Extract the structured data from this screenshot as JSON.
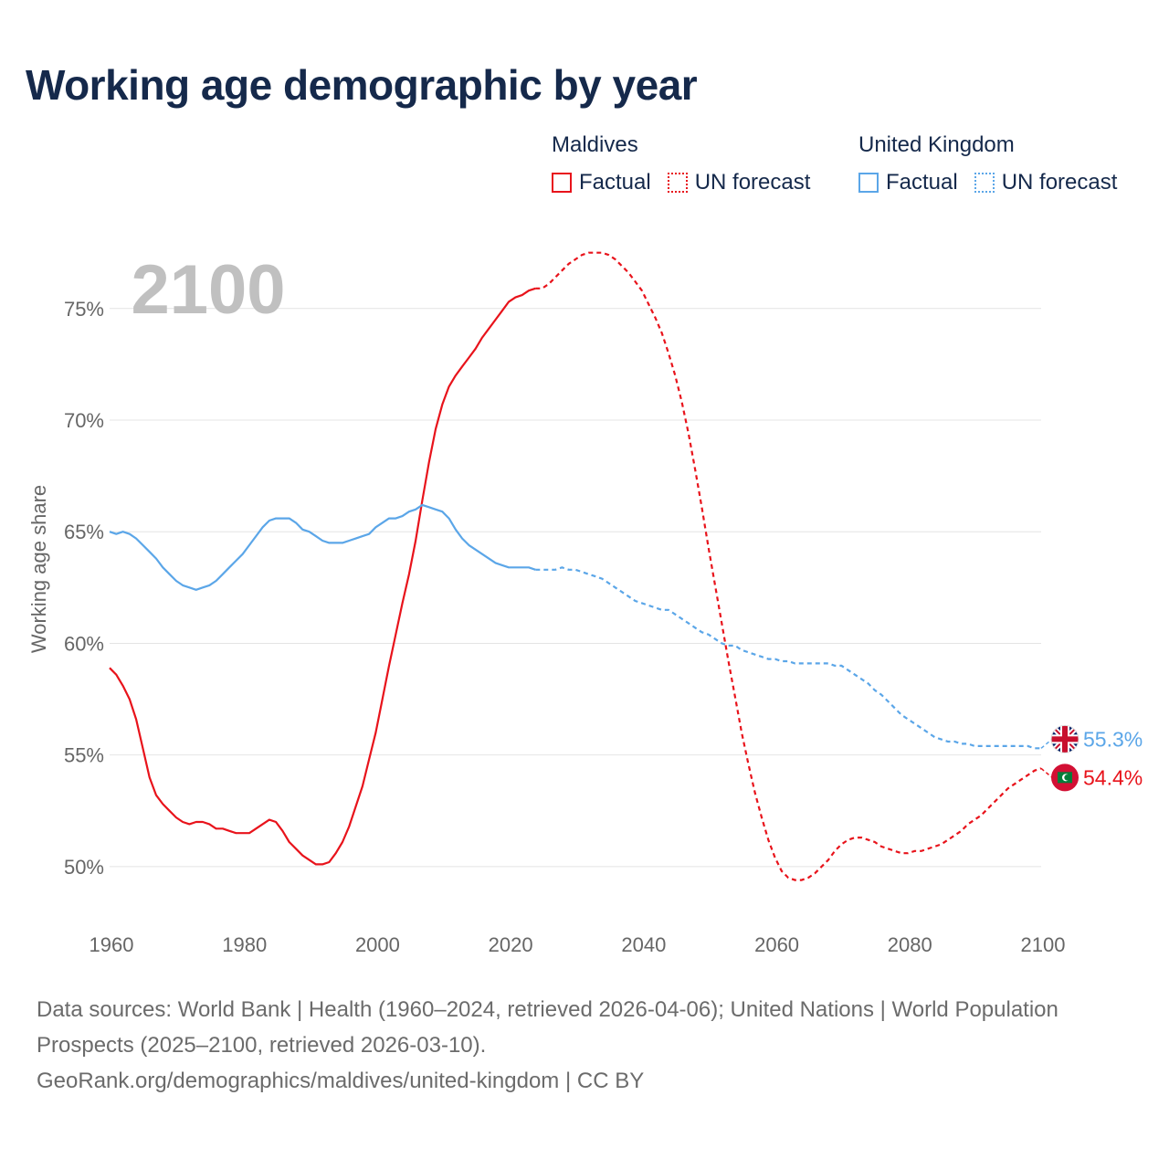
{
  "title": "Working age demographic by year",
  "legend": [
    {
      "country": "Maldives",
      "factual_label": "Factual",
      "forecast_label": "UN forecast",
      "color": "#e8131b"
    },
    {
      "country": "United Kingdom",
      "factual_label": "Factual",
      "forecast_label": "UN forecast",
      "color": "#5ba6e8"
    }
  ],
  "footer": {
    "sources": "Data sources: World Bank | Health (1960–2024, retrieved 2026-04-06); United Nations | World Population Prospects (2025–2100, retrieved 2026-03-10).",
    "link": "GeoRank.org/demographics/maldives/united-kingdom | CC BY"
  },
  "chart_data": {
    "type": "line",
    "title": "Working age demographic by year",
    "year_watermark": "2100",
    "xlabel": "",
    "ylabel": "Working age share",
    "xlim": [
      1960,
      2100
    ],
    "ylim": [
      47.5,
      79
    ],
    "x_ticks": [
      1960,
      1980,
      2000,
      2020,
      2040,
      2060,
      2080,
      2100
    ],
    "y_ticks": [
      50,
      55,
      60,
      65,
      70,
      75
    ],
    "y_tick_labels": [
      "50%",
      "55%",
      "60%",
      "65%",
      "70%",
      "75%"
    ],
    "grid": "horizontal",
    "factual_end_year": 2024,
    "series": [
      {
        "name": "Maldives",
        "color": "#e8131b",
        "end_label": "54.4%",
        "flag": "maldives-flag",
        "points": [
          [
            1960,
            58.9
          ],
          [
            1961,
            58.6
          ],
          [
            1962,
            58.1
          ],
          [
            1963,
            57.5
          ],
          [
            1964,
            56.6
          ],
          [
            1965,
            55.3
          ],
          [
            1966,
            54.0
          ],
          [
            1967,
            53.2
          ],
          [
            1968,
            52.8
          ],
          [
            1969,
            52.5
          ],
          [
            1970,
            52.2
          ],
          [
            1971,
            52.0
          ],
          [
            1972,
            51.9
          ],
          [
            1973,
            52.0
          ],
          [
            1974,
            52.0
          ],
          [
            1975,
            51.9
          ],
          [
            1976,
            51.7
          ],
          [
            1977,
            51.7
          ],
          [
            1978,
            51.6
          ],
          [
            1979,
            51.5
          ],
          [
            1980,
            51.5
          ],
          [
            1981,
            51.5
          ],
          [
            1982,
            51.7
          ],
          [
            1983,
            51.9
          ],
          [
            1984,
            52.1
          ],
          [
            1985,
            52.0
          ],
          [
            1986,
            51.6
          ],
          [
            1987,
            51.1
          ],
          [
            1988,
            50.8
          ],
          [
            1989,
            50.5
          ],
          [
            1990,
            50.3
          ],
          [
            1991,
            50.1
          ],
          [
            1992,
            50.1
          ],
          [
            1993,
            50.2
          ],
          [
            1994,
            50.6
          ],
          [
            1995,
            51.1
          ],
          [
            1996,
            51.8
          ],
          [
            1997,
            52.7
          ],
          [
            1998,
            53.6
          ],
          [
            1999,
            54.8
          ],
          [
            2000,
            56.0
          ],
          [
            2001,
            57.5
          ],
          [
            2002,
            59.0
          ],
          [
            2003,
            60.4
          ],
          [
            2004,
            61.8
          ],
          [
            2005,
            63.1
          ],
          [
            2006,
            64.6
          ],
          [
            2007,
            66.4
          ],
          [
            2008,
            68.1
          ],
          [
            2009,
            69.6
          ],
          [
            2010,
            70.7
          ],
          [
            2011,
            71.5
          ],
          [
            2012,
            72.0
          ],
          [
            2013,
            72.4
          ],
          [
            2014,
            72.8
          ],
          [
            2015,
            73.2
          ],
          [
            2016,
            73.7
          ],
          [
            2017,
            74.1
          ],
          [
            2018,
            74.5
          ],
          [
            2019,
            74.9
          ],
          [
            2020,
            75.3
          ],
          [
            2021,
            75.5
          ],
          [
            2022,
            75.6
          ],
          [
            2023,
            75.8
          ],
          [
            2024,
            75.9
          ],
          [
            2025,
            75.9
          ],
          [
            2026,
            76.1
          ],
          [
            2027,
            76.4
          ],
          [
            2028,
            76.7
          ],
          [
            2029,
            77.0
          ],
          [
            2030,
            77.2
          ],
          [
            2031,
            77.4
          ],
          [
            2032,
            77.5
          ],
          [
            2033,
            77.5
          ],
          [
            2034,
            77.5
          ],
          [
            2035,
            77.4
          ],
          [
            2036,
            77.2
          ],
          [
            2037,
            76.9
          ],
          [
            2038,
            76.6
          ],
          [
            2039,
            76.2
          ],
          [
            2040,
            75.8
          ],
          [
            2041,
            75.2
          ],
          [
            2042,
            74.6
          ],
          [
            2043,
            73.9
          ],
          [
            2044,
            73.0
          ],
          [
            2045,
            72.0
          ],
          [
            2046,
            70.8
          ],
          [
            2047,
            69.4
          ],
          [
            2048,
            67.8
          ],
          [
            2049,
            66.1
          ],
          [
            2050,
            64.3
          ],
          [
            2051,
            62.6
          ],
          [
            2052,
            60.9
          ],
          [
            2053,
            59.2
          ],
          [
            2054,
            57.6
          ],
          [
            2055,
            56.0
          ],
          [
            2056,
            54.6
          ],
          [
            2057,
            53.3
          ],
          [
            2058,
            52.2
          ],
          [
            2059,
            51.2
          ],
          [
            2060,
            50.4
          ],
          [
            2061,
            49.8
          ],
          [
            2062,
            49.5
          ],
          [
            2063,
            49.4
          ],
          [
            2064,
            49.4
          ],
          [
            2065,
            49.5
          ],
          [
            2066,
            49.7
          ],
          [
            2067,
            50.0
          ],
          [
            2068,
            50.3
          ],
          [
            2069,
            50.7
          ],
          [
            2070,
            51.0
          ],
          [
            2071,
            51.2
          ],
          [
            2072,
            51.3
          ],
          [
            2073,
            51.3
          ],
          [
            2074,
            51.2
          ],
          [
            2075,
            51.1
          ],
          [
            2076,
            50.9
          ],
          [
            2077,
            50.8
          ],
          [
            2078,
            50.7
          ],
          [
            2079,
            50.6
          ],
          [
            2080,
            50.6
          ],
          [
            2081,
            50.7
          ],
          [
            2082,
            50.7
          ],
          [
            2083,
            50.8
          ],
          [
            2084,
            50.9
          ],
          [
            2085,
            51.0
          ],
          [
            2086,
            51.2
          ],
          [
            2087,
            51.4
          ],
          [
            2088,
            51.6
          ],
          [
            2089,
            51.9
          ],
          [
            2090,
            52.1
          ],
          [
            2091,
            52.3
          ],
          [
            2092,
            52.6
          ],
          [
            2093,
            52.9
          ],
          [
            2094,
            53.2
          ],
          [
            2095,
            53.5
          ],
          [
            2096,
            53.7
          ],
          [
            2097,
            53.9
          ],
          [
            2098,
            54.1
          ],
          [
            2099,
            54.3
          ],
          [
            2100,
            54.4
          ]
        ]
      },
      {
        "name": "United Kingdom",
        "color": "#5ba6e8",
        "end_label": "55.3%",
        "flag": "united-kingdom-flag",
        "points": [
          [
            1960,
            65.0
          ],
          [
            1961,
            64.9
          ],
          [
            1962,
            65.0
          ],
          [
            1963,
            64.9
          ],
          [
            1964,
            64.7
          ],
          [
            1965,
            64.4
          ],
          [
            1966,
            64.1
          ],
          [
            1967,
            63.8
          ],
          [
            1968,
            63.4
          ],
          [
            1969,
            63.1
          ],
          [
            1970,
            62.8
          ],
          [
            1971,
            62.6
          ],
          [
            1972,
            62.5
          ],
          [
            1973,
            62.4
          ],
          [
            1974,
            62.5
          ],
          [
            1975,
            62.6
          ],
          [
            1976,
            62.8
          ],
          [
            1977,
            63.1
          ],
          [
            1978,
            63.4
          ],
          [
            1979,
            63.7
          ],
          [
            1980,
            64.0
          ],
          [
            1981,
            64.4
          ],
          [
            1982,
            64.8
          ],
          [
            1983,
            65.2
          ],
          [
            1984,
            65.5
          ],
          [
            1985,
            65.6
          ],
          [
            1986,
            65.6
          ],
          [
            1987,
            65.6
          ],
          [
            1988,
            65.4
          ],
          [
            1989,
            65.1
          ],
          [
            1990,
            65.0
          ],
          [
            1991,
            64.8
          ],
          [
            1992,
            64.6
          ],
          [
            1993,
            64.5
          ],
          [
            1994,
            64.5
          ],
          [
            1995,
            64.5
          ],
          [
            1996,
            64.6
          ],
          [
            1997,
            64.7
          ],
          [
            1998,
            64.8
          ],
          [
            1999,
            64.9
          ],
          [
            2000,
            65.2
          ],
          [
            2001,
            65.4
          ],
          [
            2002,
            65.6
          ],
          [
            2003,
            65.6
          ],
          [
            2004,
            65.7
          ],
          [
            2005,
            65.9
          ],
          [
            2006,
            66.0
          ],
          [
            2007,
            66.2
          ],
          [
            2008,
            66.1
          ],
          [
            2009,
            66.0
          ],
          [
            2010,
            65.9
          ],
          [
            2011,
            65.6
          ],
          [
            2012,
            65.1
          ],
          [
            2013,
            64.7
          ],
          [
            2014,
            64.4
          ],
          [
            2015,
            64.2
          ],
          [
            2016,
            64.0
          ],
          [
            2017,
            63.8
          ],
          [
            2018,
            63.6
          ],
          [
            2019,
            63.5
          ],
          [
            2020,
            63.4
          ],
          [
            2021,
            63.4
          ],
          [
            2022,
            63.4
          ],
          [
            2023,
            63.4
          ],
          [
            2024,
            63.3
          ],
          [
            2025,
            63.3
          ],
          [
            2026,
            63.3
          ],
          [
            2027,
            63.3
          ],
          [
            2028,
            63.4
          ],
          [
            2029,
            63.3
          ],
          [
            2030,
            63.3
          ],
          [
            2031,
            63.2
          ],
          [
            2032,
            63.1
          ],
          [
            2033,
            63.0
          ],
          [
            2034,
            62.9
          ],
          [
            2035,
            62.7
          ],
          [
            2036,
            62.5
          ],
          [
            2037,
            62.3
          ],
          [
            2038,
            62.1
          ],
          [
            2039,
            61.9
          ],
          [
            2040,
            61.8
          ],
          [
            2041,
            61.7
          ],
          [
            2042,
            61.6
          ],
          [
            2043,
            61.5
          ],
          [
            2044,
            61.5
          ],
          [
            2045,
            61.3
          ],
          [
            2046,
            61.1
          ],
          [
            2047,
            60.9
          ],
          [
            2048,
            60.7
          ],
          [
            2049,
            60.5
          ],
          [
            2050,
            60.4
          ],
          [
            2051,
            60.2
          ],
          [
            2052,
            60.0
          ],
          [
            2053,
            59.9
          ],
          [
            2054,
            59.9
          ],
          [
            2055,
            59.7
          ],
          [
            2056,
            59.6
          ],
          [
            2057,
            59.5
          ],
          [
            2058,
            59.4
          ],
          [
            2059,
            59.3
          ],
          [
            2060,
            59.3
          ],
          [
            2061,
            59.2
          ],
          [
            2062,
            59.2
          ],
          [
            2063,
            59.1
          ],
          [
            2064,
            59.1
          ],
          [
            2065,
            59.1
          ],
          [
            2066,
            59.1
          ],
          [
            2067,
            59.1
          ],
          [
            2068,
            59.1
          ],
          [
            2069,
            59.0
          ],
          [
            2070,
            59.0
          ],
          [
            2071,
            58.8
          ],
          [
            2072,
            58.6
          ],
          [
            2073,
            58.4
          ],
          [
            2074,
            58.2
          ],
          [
            2075,
            57.9
          ],
          [
            2076,
            57.7
          ],
          [
            2077,
            57.4
          ],
          [
            2078,
            57.1
          ],
          [
            2079,
            56.8
          ],
          [
            2080,
            56.6
          ],
          [
            2081,
            56.4
          ],
          [
            2082,
            56.2
          ],
          [
            2083,
            56.0
          ],
          [
            2084,
            55.8
          ],
          [
            2085,
            55.7
          ],
          [
            2086,
            55.6
          ],
          [
            2087,
            55.6
          ],
          [
            2088,
            55.5
          ],
          [
            2089,
            55.5
          ],
          [
            2090,
            55.4
          ],
          [
            2091,
            55.4
          ],
          [
            2092,
            55.4
          ],
          [
            2093,
            55.4
          ],
          [
            2094,
            55.4
          ],
          [
            2095,
            55.4
          ],
          [
            2096,
            55.4
          ],
          [
            2097,
            55.4
          ],
          [
            2098,
            55.4
          ],
          [
            2099,
            55.3
          ],
          [
            2100,
            55.3
          ]
        ]
      }
    ]
  }
}
